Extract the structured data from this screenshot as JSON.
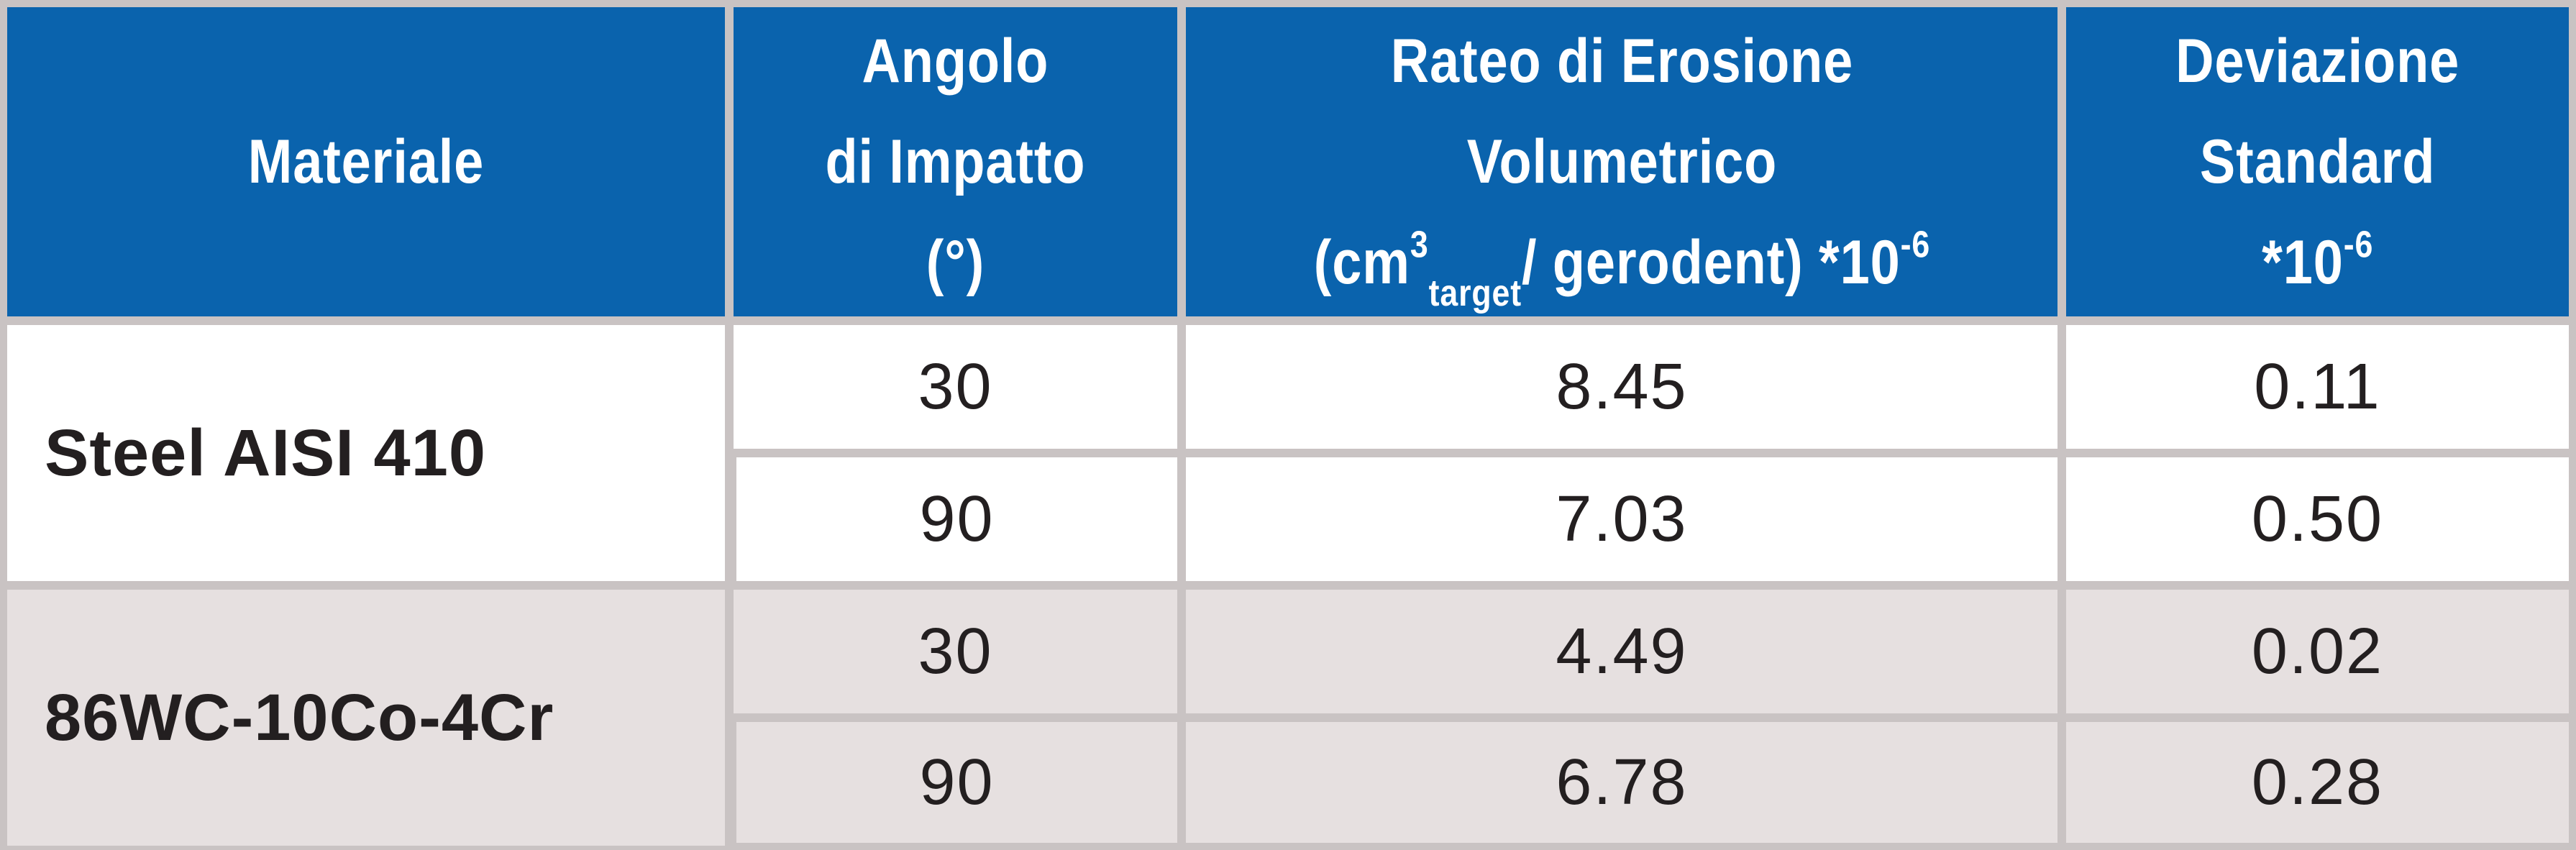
{
  "table": {
    "headers": {
      "material": "Materiale",
      "angle_line1": "Angolo",
      "angle_line2": "di Impatto",
      "angle_line3": "(°)",
      "rate_line1": "Rateo di Erosione",
      "rate_line2": "Volumetrico",
      "rate_line3_pre": "(cm",
      "rate_line3_sup": "3",
      "rate_line3_sub": "target",
      "rate_line3_post": "/ gerodent) *10",
      "rate_line3_exp": "-6",
      "std_line1": "Deviazione",
      "std_line2": "Standard",
      "std_line3_pre": "*10",
      "std_line3_exp": "-6"
    },
    "groups": [
      {
        "material": "Steel AISI 410",
        "rows": [
          {
            "angle": "30",
            "rate": "8.45",
            "std": "0.11"
          },
          {
            "angle": "90",
            "rate": "7.03",
            "std": "0.50"
          }
        ]
      },
      {
        "material": "86WC-10Co-4Cr",
        "rows": [
          {
            "angle": "30",
            "rate": "4.49",
            "std": "0.02"
          },
          {
            "angle": "90",
            "rate": "6.78",
            "std": "0.28"
          }
        ]
      }
    ],
    "colors": {
      "header_background": "#0a63ad",
      "header_text": "#ffffff",
      "grid_lines": "#c9c3c3",
      "group_a_background": "#ffffff",
      "group_b_background": "#e6e0e0",
      "body_text": "#231f20"
    }
  }
}
